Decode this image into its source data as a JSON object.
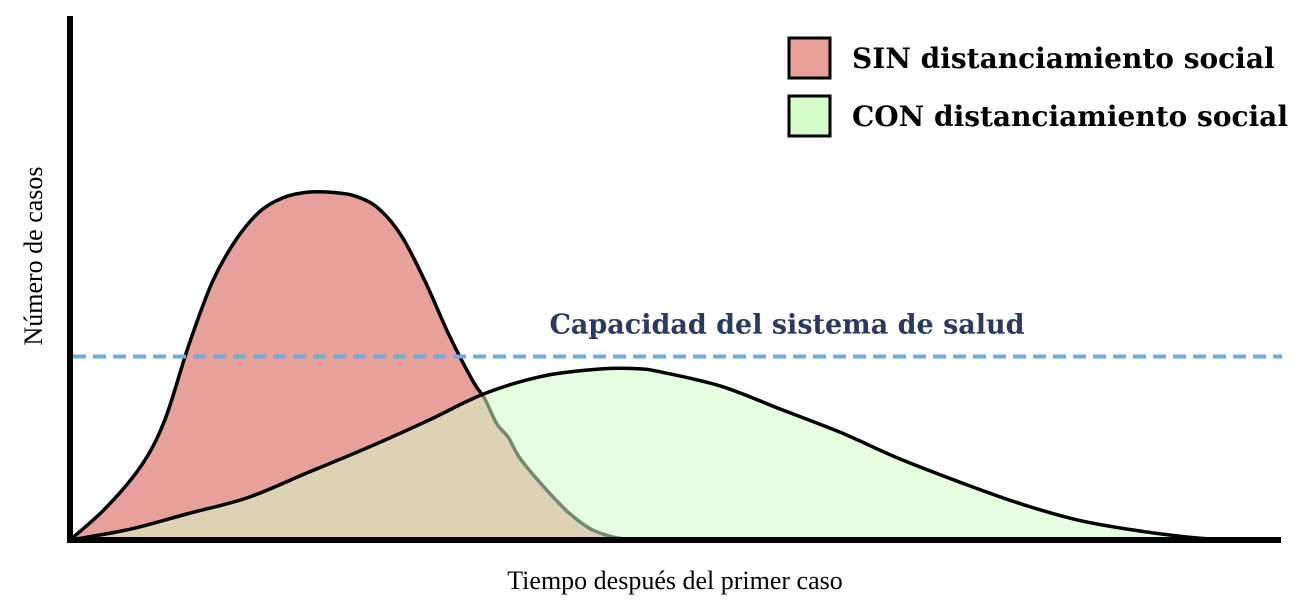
{
  "chart_data": {
    "type": "area",
    "title": "",
    "xlabel": "Tiempo después del primer caso",
    "ylabel": "Número de casos",
    "xlim": [
      0,
      100
    ],
    "ylim": [
      0,
      100
    ],
    "grid": false,
    "legend_position": "top-right",
    "series": [
      {
        "name": "SIN distanciamiento social",
        "color": "#e8a09a",
        "x": [
          0,
          3,
          6,
          8,
          10,
          12,
          14,
          16,
          18,
          20,
          22,
          24,
          26,
          28,
          30,
          32,
          34,
          35,
          36,
          37,
          38,
          40,
          42,
          44,
          46,
          47
        ],
        "values": [
          0,
          9,
          21,
          34,
          55,
          73,
          85,
          93,
          97,
          98.5,
          98.5,
          97.5,
          94,
          86,
          73,
          58,
          45,
          40,
          33,
          29,
          23,
          15,
          8,
          3,
          0.7,
          0.3
        ]
      },
      {
        "name": "CON distanciamiento social",
        "color": "#d4fbc8",
        "x": [
          0,
          5,
          10,
          15,
          20,
          25,
          30,
          35,
          40,
          45,
          48,
          50,
          55,
          60,
          65,
          70,
          75,
          80,
          85,
          90,
          95,
          97.5,
          100
        ],
        "values": [
          0,
          3,
          7.5,
          12,
          19,
          26,
          33.5,
          41.5,
          46.5,
          48.5,
          48.5,
          47.5,
          43.5,
          37,
          30.5,
          23,
          16.5,
          10.5,
          5.7,
          2.7,
          0.6,
          0.1,
          0
        ]
      }
    ],
    "annotations": [
      {
        "label": "Capacidad del sistema de salud",
        "y": 52,
        "color": "#6aaee0",
        "text_color": "#2b3a5e",
        "style": "dashed"
      }
    ]
  }
}
